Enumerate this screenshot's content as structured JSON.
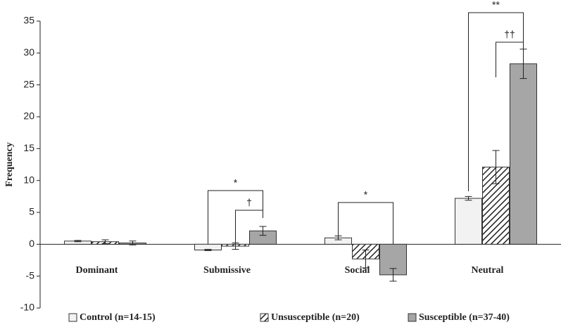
{
  "chart_data": {
    "type": "bar",
    "y_label": "Frequency",
    "categories": [
      "Dominant",
      "Submissive",
      "Social",
      "Neutral"
    ],
    "series": [
      {
        "name": "Control (n=14-15)",
        "color": "#f2f2f2",
        "values": [
          0.5,
          -0.9,
          1.0,
          7.2
        ],
        "errors": [
          0.1,
          0.1,
          0.3,
          0.3
        ]
      },
      {
        "name": "Unsusceptible (n=20)",
        "color": "hatch",
        "values": [
          0.4,
          -0.3,
          -2.3,
          12.1
        ],
        "errors": [
          0.3,
          0.5,
          1.4,
          2.6
        ]
      },
      {
        "name": "Susceptible (n=37-40)",
        "color": "#a6a6a6",
        "values": [
          0.2,
          2.1,
          -4.8,
          28.3
        ],
        "errors": [
          0.3,
          0.7,
          1.0,
          2.3
        ]
      }
    ],
    "annotations": [
      "*",
      "†",
      "*",
      "**",
      "††"
    ],
    "ylim": [
      -10,
      35
    ],
    "yticks": [
      -10,
      -5,
      0,
      5,
      10,
      15,
      20,
      25,
      30,
      35
    ],
    "legend": "bottom"
  }
}
